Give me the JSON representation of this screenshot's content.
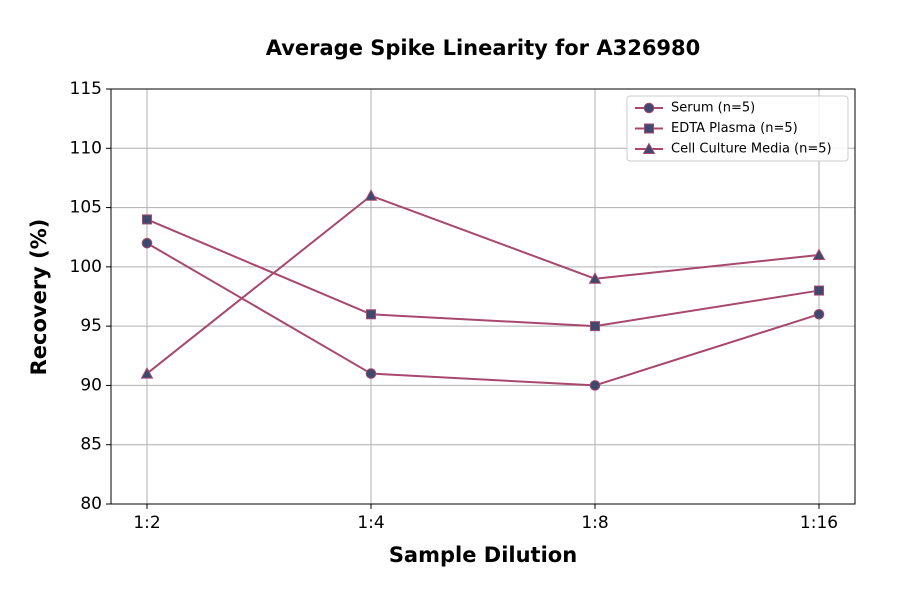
{
  "chart_data": {
    "type": "line",
    "title": "Average Spike Linearity for A326980",
    "x_label": "Sample Dilution",
    "y_label": "Recovery (%)",
    "categories": [
      "1:2",
      "1:4",
      "1:8",
      "1:16"
    ],
    "series": [
      {
        "name": "Serum (n=5)",
        "color": "#a8486e",
        "marker_color": "#3b4a6e",
        "marker": "circle",
        "values": [
          102,
          91,
          90,
          96
        ]
      },
      {
        "name": "EDTA Plasma (n=5)",
        "color": "#a8486e",
        "marker_color": "#3b4a6e",
        "marker": "square",
        "values": [
          104,
          96,
          95,
          98
        ]
      },
      {
        "name": "Cell Culture Media (n=5)",
        "color": "#a8486e",
        "marker_color": "#3b4a6e",
        "marker": "triangle",
        "values": [
          91,
          106,
          99,
          101
        ]
      }
    ],
    "ylim": [
      80,
      115
    ],
    "yticks": [
      80,
      85,
      90,
      95,
      100,
      105,
      110,
      115
    ],
    "grid": true,
    "legend": "upper right"
  }
}
